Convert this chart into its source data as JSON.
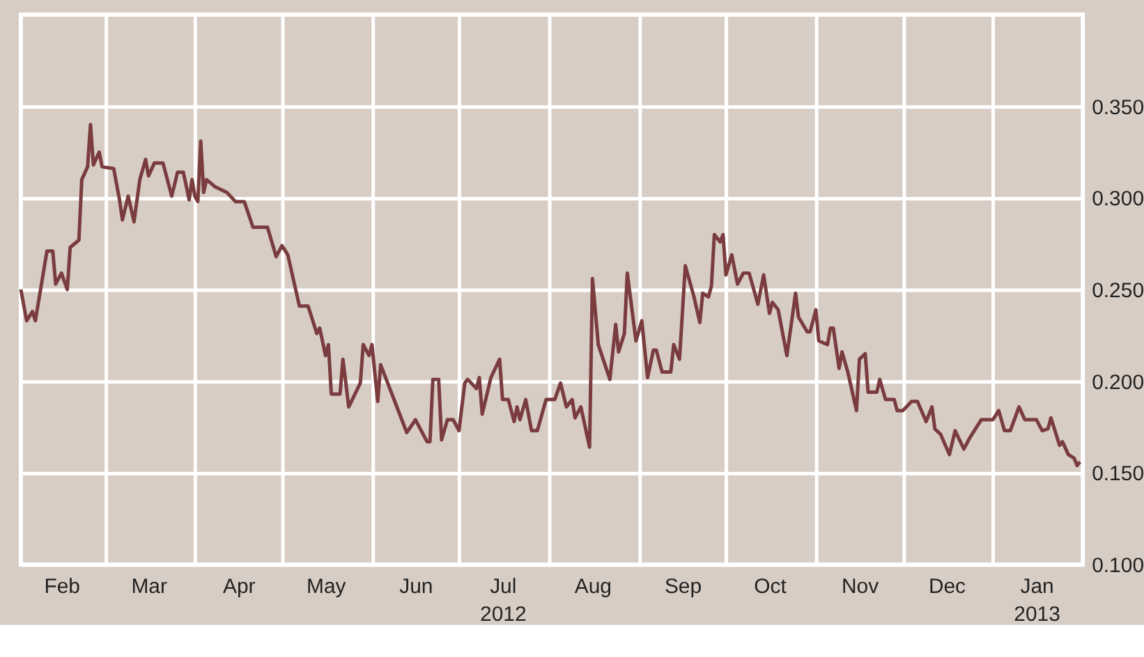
{
  "chart_data": {
    "type": "line",
    "x": [
      "2012-02-01",
      "2012-02-03",
      "2012-02-05",
      "2012-02-06",
      "2012-02-10",
      "2012-02-12",
      "2012-02-13",
      "2012-02-15",
      "2012-02-17",
      "2012-02-18",
      "2012-02-21",
      "2012-02-22",
      "2012-02-24",
      "2012-02-25",
      "2012-02-26",
      "2012-02-28",
      "2012-02-29",
      "2012-03-04",
      "2012-03-06",
      "2012-03-07",
      "2012-03-09",
      "2012-03-11",
      "2012-03-13",
      "2012-03-15",
      "2012-03-16",
      "2012-03-18",
      "2012-03-21",
      "2012-03-24",
      "2012-03-26",
      "2012-03-28",
      "2012-03-30",
      "2012-03-31",
      "2012-04-01",
      "2012-04-02",
      "2012-04-03",
      "2012-04-04",
      "2012-04-05",
      "2012-04-08",
      "2012-04-12",
      "2012-04-15",
      "2012-04-18",
      "2012-04-21",
      "2012-04-26",
      "2012-04-29",
      "2012-05-01",
      "2012-05-03",
      "2012-05-07",
      "2012-05-10",
      "2012-05-13",
      "2012-05-14",
      "2012-05-16",
      "2012-05-17",
      "2012-05-18",
      "2012-05-21",
      "2012-05-22",
      "2012-05-24",
      "2012-05-28",
      "2012-05-29",
      "2012-05-31",
      "2012-06-01",
      "2012-06-03",
      "2012-06-04",
      "2012-06-13",
      "2012-06-16",
      "2012-06-20",
      "2012-06-21",
      "2012-06-22",
      "2012-06-24",
      "2012-06-25",
      "2012-06-27",
      "2012-06-29",
      "2012-07-01",
      "2012-07-03",
      "2012-07-04",
      "2012-07-07",
      "2012-07-08",
      "2012-07-09",
      "2012-07-12",
      "2012-07-15",
      "2012-07-16",
      "2012-07-18",
      "2012-07-20",
      "2012-07-21",
      "2012-07-22",
      "2012-07-24",
      "2012-07-26",
      "2012-07-28",
      "2012-07-31",
      "2012-08-03",
      "2012-08-05",
      "2012-08-07",
      "2012-08-09",
      "2012-08-10",
      "2012-08-12",
      "2012-08-15",
      "2012-08-16",
      "2012-08-18",
      "2012-08-22",
      "2012-08-24",
      "2012-08-25",
      "2012-08-27",
      "2012-08-28",
      "2012-08-31",
      "2012-09-02",
      "2012-09-04",
      "2012-09-06",
      "2012-09-07",
      "2012-09-09",
      "2012-09-12",
      "2012-09-13",
      "2012-09-15",
      "2012-09-17",
      "2012-09-20",
      "2012-09-22",
      "2012-09-23",
      "2012-09-25",
      "2012-09-26",
      "2012-09-27",
      "2012-09-29",
      "2012-09-30",
      "2012-10-01",
      "2012-10-03",
      "2012-10-05",
      "2012-10-07",
      "2012-10-09",
      "2012-10-12",
      "2012-10-14",
      "2012-10-16",
      "2012-10-17",
      "2012-10-19",
      "2012-10-22",
      "2012-10-25",
      "2012-10-26",
      "2012-10-29",
      "2012-10-30",
      "2012-11-01",
      "2012-11-02",
      "2012-11-05",
      "2012-11-06",
      "2012-11-07",
      "2012-11-09",
      "2012-11-10",
      "2012-11-12",
      "2012-11-15",
      "2012-11-16",
      "2012-11-18",
      "2012-11-19",
      "2012-11-22",
      "2012-11-23",
      "2012-11-25",
      "2012-11-28",
      "2012-11-29",
      "2012-12-01",
      "2012-12-04",
      "2012-12-06",
      "2012-12-09",
      "2012-12-11",
      "2012-12-12",
      "2012-12-14",
      "2012-12-17",
      "2012-12-19",
      "2012-12-22",
      "2012-12-24",
      "2012-12-28",
      "2013-01-01",
      "2013-01-03",
      "2013-01-05",
      "2013-01-07",
      "2013-01-10",
      "2013-01-12",
      "2013-01-16",
      "2013-01-18",
      "2013-01-20",
      "2013-01-21",
      "2013-01-24",
      "2013-01-25",
      "2013-01-27",
      "2013-01-29",
      "2013-01-30",
      "2013-01-31"
    ],
    "series": [
      {
        "color": "#7a3c3e",
        "values": [
          0.25,
          0.233,
          0.238,
          0.233,
          0.271,
          0.271,
          0.253,
          0.259,
          0.25,
          0.273,
          0.277,
          0.31,
          0.317,
          0.34,
          0.318,
          0.325,
          0.317,
          0.316,
          0.299,
          0.288,
          0.301,
          0.287,
          0.31,
          0.321,
          0.312,
          0.319,
          0.319,
          0.301,
          0.314,
          0.314,
          0.299,
          0.31,
          0.301,
          0.298,
          0.331,
          0.303,
          0.31,
          0.306,
          0.303,
          0.298,
          0.298,
          0.284,
          0.284,
          0.268,
          0.274,
          0.269,
          0.241,
          0.241,
          0.226,
          0.229,
          0.214,
          0.22,
          0.193,
          0.193,
          0.212,
          0.186,
          0.199,
          0.22,
          0.214,
          0.22,
          0.189,
          0.209,
          0.172,
          0.179,
          0.167,
          0.167,
          0.201,
          0.201,
          0.168,
          0.179,
          0.179,
          0.173,
          0.199,
          0.201,
          0.196,
          0.202,
          0.182,
          0.202,
          0.212,
          0.19,
          0.19,
          0.178,
          0.186,
          0.179,
          0.19,
          0.173,
          0.173,
          0.19,
          0.19,
          0.199,
          0.186,
          0.19,
          0.18,
          0.186,
          0.164,
          0.256,
          0.22,
          0.201,
          0.231,
          0.216,
          0.226,
          0.259,
          0.222,
          0.233,
          0.202,
          0.217,
          0.217,
          0.205,
          0.205,
          0.22,
          0.212,
          0.263,
          0.246,
          0.232,
          0.248,
          0.246,
          0.252,
          0.28,
          0.276,
          0.28,
          0.258,
          0.269,
          0.253,
          0.259,
          0.259,
          0.242,
          0.258,
          0.237,
          0.243,
          0.239,
          0.214,
          0.248,
          0.235,
          0.227,
          0.227,
          0.239,
          0.222,
          0.22,
          0.229,
          0.229,
          0.207,
          0.216,
          0.205,
          0.184,
          0.212,
          0.215,
          0.194,
          0.194,
          0.201,
          0.19,
          0.19,
          0.184,
          0.184,
          0.189,
          0.189,
          0.178,
          0.186,
          0.174,
          0.171,
          0.16,
          0.173,
          0.163,
          0.169,
          0.179,
          0.179,
          0.184,
          0.173,
          0.173,
          0.186,
          0.179,
          0.179,
          0.173,
          0.174,
          0.18,
          0.165,
          0.167,
          0.16,
          0.158,
          0.154,
          0.156
        ]
      }
    ],
    "xlim": [
      "2012-02-01",
      "2013-02-01"
    ],
    "xticks": [
      {
        "value": "2012-03-01",
        "label": null
      },
      {
        "value": "2012-04-01",
        "label": null
      },
      {
        "value": "2012-05-01",
        "label": null
      },
      {
        "value": "2012-06-01",
        "label": null
      },
      {
        "value": "2012-07-01",
        "label": null
      },
      {
        "value": "2012-08-01",
        "label": null
      },
      {
        "value": "2012-09-01",
        "label": null
      },
      {
        "value": "2012-10-01",
        "label": null
      },
      {
        "value": "2012-11-01",
        "label": null
      },
      {
        "value": "2012-12-01",
        "label": null
      },
      {
        "value": "2013-01-01",
        "label": null
      },
      {
        "value": "2012-02-15",
        "label": "Feb"
      },
      {
        "value": "2012-03-16",
        "label": "Mar"
      },
      {
        "value": "2012-04-16",
        "label": "Apr"
      },
      {
        "value": "2012-05-16",
        "label": "May"
      },
      {
        "value": "2012-06-16",
        "label": "Jun"
      },
      {
        "value": "2012-07-16",
        "label": "Jul 2012"
      },
      {
        "value": "2012-08-16",
        "label": "Aug"
      },
      {
        "value": "2012-09-16",
        "label": "Sep"
      },
      {
        "value": "2012-10-16",
        "label": "Oct"
      },
      {
        "value": "2012-11-16",
        "label": "Nov"
      },
      {
        "value": "2012-12-16",
        "label": "Dec"
      },
      {
        "value": "2013-01-16",
        "label": "Jan 2013"
      }
    ],
    "ylim": [
      0.1,
      0.4
    ],
    "yticks": [
      {
        "value": 0.1,
        "label": "0.100"
      },
      {
        "value": 0.15,
        "label": "0.150"
      },
      {
        "value": 0.2,
        "label": "0.200"
      },
      {
        "value": 0.25,
        "label": "0.250"
      },
      {
        "value": 0.3,
        "label": "0.300"
      },
      {
        "value": 0.35,
        "label": "0.350"
      }
    ],
    "grid": true
  }
}
